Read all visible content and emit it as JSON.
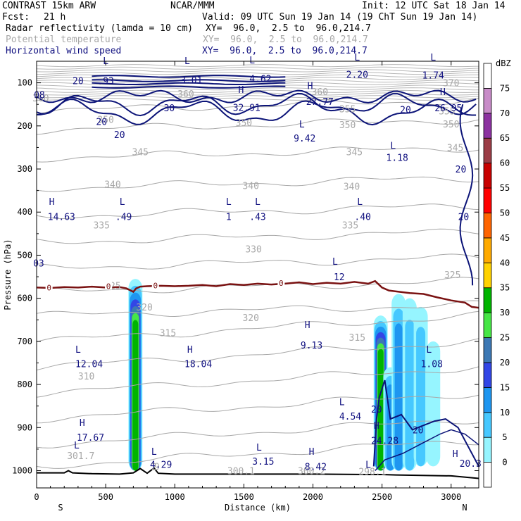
{
  "header": {
    "model": "CONTRAST 15km ARW",
    "org": "NCAR/MMM",
    "init": "Init: 12 UTC Sat 18 Jan 14",
    "fcst_label": "Fcst:",
    "fcst_value": "21 h",
    "valid": "Valid: 09 UTC Sun 19 Jan 14 (19 ChT Sun 19 Jan 14)"
  },
  "fields": [
    {
      "name": "Radar reflectivity (lamda = 10 cm)",
      "xy": "XY=  96.0,  2.5 to  96.0,214.7",
      "color": "#000000"
    },
    {
      "name": "Potential temperature",
      "xy": "XY=  96.0,  2.5 to  96.0,214.7",
      "color": "#a8a8a8"
    },
    {
      "name": "Horizontal wind speed",
      "xy": "XY=  96.0,  2.5 to  96.0,214.7",
      "color": "#101080"
    }
  ],
  "chart_data": {
    "type": "heatmap",
    "title": "",
    "xlabel": "Distance (km)",
    "ylabel": "Pressure (hPa)",
    "xlim": [
      0,
      3200
    ],
    "ylim": [
      1040,
      50
    ],
    "x_ticks": [
      0,
      500,
      1000,
      1500,
      2000,
      2500,
      3000
    ],
    "y_ticks": [
      100,
      200,
      300,
      400,
      500,
      600,
      700,
      800,
      900,
      1000
    ],
    "x_end_labels": {
      "left": "S",
      "right": "N"
    },
    "colorbar": {
      "unit": "dBZ",
      "levels": [
        0,
        5,
        10,
        15,
        20,
        25,
        30,
        35,
        40,
        45,
        50,
        55,
        60,
        65,
        70,
        75
      ],
      "colors": [
        "#ffffff",
        "#96f5ff",
        "#46c8ff",
        "#1e96f0",
        "#3246e6",
        "#3c78b4",
        "#46e646",
        "#00b400",
        "#ffd200",
        "#ffaa00",
        "#ff6400",
        "#ff0000",
        "#c80000",
        "#9b3c46",
        "#8c32a0",
        "#c88cc8",
        "#ffffff"
      ]
    },
    "theta_labels": [
      {
        "x": 30,
        "p": 135,
        "text": "360"
      },
      {
        "x": 1080,
        "p": 125,
        "text": "360"
      },
      {
        "x": 2050,
        "p": 120,
        "text": "360"
      },
      {
        "x": 3000,
        "p": 100,
        "text": "370"
      },
      {
        "x": 2970,
        "p": 165,
        "text": "355"
      },
      {
        "x": 2250,
        "p": 160,
        "text": "355"
      },
      {
        "x": 500,
        "p": 185,
        "text": "350"
      },
      {
        "x": 1500,
        "p": 192,
        "text": "350"
      },
      {
        "x": 2250,
        "p": 197,
        "text": "350"
      },
      {
        "x": 3000,
        "p": 195,
        "text": "350"
      },
      {
        "x": 750,
        "p": 260,
        "text": "345"
      },
      {
        "x": 2300,
        "p": 260,
        "text": "345"
      },
      {
        "x": 3030,
        "p": 250,
        "text": "345"
      },
      {
        "x": 550,
        "p": 335,
        "text": "340"
      },
      {
        "x": 1550,
        "p": 338,
        "text": "340"
      },
      {
        "x": 2280,
        "p": 340,
        "text": "340"
      },
      {
        "x": 470,
        "p": 430,
        "text": "335"
      },
      {
        "x": 2270,
        "p": 430,
        "text": "335"
      },
      {
        "x": 1570,
        "p": 485,
        "text": "330"
      },
      {
        "x": 550,
        "p": 570,
        "text": "325"
      },
      {
        "x": 3010,
        "p": 545,
        "text": "325"
      },
      {
        "x": 780,
        "p": 620,
        "text": "320"
      },
      {
        "x": 1550,
        "p": 645,
        "text": "320"
      },
      {
        "x": 950,
        "p": 680,
        "text": "315"
      },
      {
        "x": 2320,
        "p": 690,
        "text": "315"
      },
      {
        "x": 360,
        "p": 780,
        "text": "310"
      },
      {
        "x": 320,
        "p": 965,
        "text": "301.7"
      },
      {
        "x": 850,
        "p": 990,
        "text": "2"
      },
      {
        "x": 870,
        "p": 990,
        "text": "9"
      },
      {
        "x": 1480,
        "p": 1000,
        "text": "300.1"
      },
      {
        "x": 1990,
        "p": 1000,
        "text": "300.2"
      },
      {
        "x": 2430,
        "p": 1002,
        "text": "298.1"
      }
    ],
    "wind_speed_labels": [
      {
        "x": 300,
        "p": 95,
        "text": "20"
      },
      {
        "x": 500,
        "p": 95,
        "text": ".93"
      },
      {
        "x": 1120,
        "p": 93,
        "text": "3.01"
      },
      {
        "x": 1620,
        "p": 90,
        "text": "4.62"
      },
      {
        "x": 2320,
        "p": 80,
        "text": "2.20"
      },
      {
        "x": 2870,
        "p": 82,
        "text": "1.74"
      },
      {
        "x": 20,
        "p": 128,
        "text": "08"
      },
      {
        "x": 960,
        "p": 158,
        "text": "30"
      },
      {
        "x": 1520,
        "p": 157,
        "text": "32.91"
      },
      {
        "x": 2050,
        "p": 143,
        "text": "27.77"
      },
      {
        "x": 2670,
        "p": 162,
        "text": "20"
      },
      {
        "x": 2980,
        "p": 158,
        "text": "26.95"
      },
      {
        "x": 470,
        "p": 190,
        "text": "20"
      },
      {
        "x": 600,
        "p": 220,
        "text": "20"
      },
      {
        "x": 1940,
        "p": 228,
        "text": "9.42"
      },
      {
        "x": 2610,
        "p": 273,
        "text": "1.18"
      },
      {
        "x": 3070,
        "p": 300,
        "text": "20"
      },
      {
        "x": 180,
        "p": 410,
        "text": "14.63"
      },
      {
        "x": 630,
        "p": 410,
        "text": ".49"
      },
      {
        "x": 1390,
        "p": 410,
        "text": "1"
      },
      {
        "x": 1600,
        "p": 410,
        "text": ".43"
      },
      {
        "x": 2360,
        "p": 410,
        "text": ".40"
      },
      {
        "x": 3090,
        "p": 410,
        "text": "20"
      },
      {
        "x": 15,
        "p": 518,
        "text": "03"
      },
      {
        "x": 2190,
        "p": 550,
        "text": "12"
      },
      {
        "x": 1990,
        "p": 708,
        "text": "9.13"
      },
      {
        "x": 380,
        "p": 752,
        "text": "12.04"
      },
      {
        "x": 1170,
        "p": 752,
        "text": "18.04"
      },
      {
        "x": 2860,
        "p": 752,
        "text": "1.08"
      },
      {
        "x": 2270,
        "p": 873,
        "text": "4.54"
      },
      {
        "x": 2460,
        "p": 857,
        "text": "20"
      },
      {
        "x": 390,
        "p": 922,
        "text": "17.67"
      },
      {
        "x": 2520,
        "p": 930,
        "text": "24.28"
      },
      {
        "x": 2760,
        "p": 905,
        "text": "20"
      },
      {
        "x": 900,
        "p": 985,
        "text": "4.29"
      },
      {
        "x": 1640,
        "p": 978,
        "text": "3.15"
      },
      {
        "x": 2020,
        "p": 990,
        "text": "8.42"
      },
      {
        "x": 3140,
        "p": 983,
        "text": "20.3"
      }
    ],
    "extrema_marks": [
      {
        "x": 500,
        "p": 48,
        "text": "L"
      },
      {
        "x": 1090,
        "p": 48,
        "text": "L"
      },
      {
        "x": 1560,
        "p": 47,
        "text": "L"
      },
      {
        "x": 2320,
        "p": 40,
        "text": "L"
      },
      {
        "x": 2870,
        "p": 40,
        "text": "L"
      },
      {
        "x": 1480,
        "p": 115,
        "text": "H"
      },
      {
        "x": 1980,
        "p": 106,
        "text": "H"
      },
      {
        "x": 2940,
        "p": 120,
        "text": "H"
      },
      {
        "x": 1920,
        "p": 195,
        "text": "L"
      },
      {
        "x": 2580,
        "p": 245,
        "text": "L"
      },
      {
        "x": 110,
        "p": 375,
        "text": "H"
      },
      {
        "x": 620,
        "p": 375,
        "text": "L"
      },
      {
        "x": 1390,
        "p": 375,
        "text": "L"
      },
      {
        "x": 1600,
        "p": 375,
        "text": "L"
      },
      {
        "x": 2340,
        "p": 375,
        "text": "L"
      },
      {
        "x": 2160,
        "p": 514,
        "text": "L"
      },
      {
        "x": 1960,
        "p": 661,
        "text": "H"
      },
      {
        "x": 300,
        "p": 718,
        "text": "L"
      },
      {
        "x": 1110,
        "p": 718,
        "text": "H"
      },
      {
        "x": 2840,
        "p": 718,
        "text": "L"
      },
      {
        "x": 2210,
        "p": 840,
        "text": "L"
      },
      {
        "x": 330,
        "p": 888,
        "text": "H"
      },
      {
        "x": 2460,
        "p": 895,
        "text": "H"
      },
      {
        "x": 850,
        "p": 955,
        "text": "L"
      },
      {
        "x": 1610,
        "p": 945,
        "text": "L"
      },
      {
        "x": 1990,
        "p": 955,
        "text": "H"
      },
      {
        "x": 3030,
        "p": 960,
        "text": "H"
      },
      {
        "x": 290,
        "p": 940,
        "text": "L"
      },
      {
        "x": 2400,
        "p": 985,
        "text": "L"
      }
    ],
    "freezing_level_labels": [
      {
        "x": 90,
        "p": 575,
        "text": "0"
      },
      {
        "x": 520,
        "p": 572,
        "text": "0"
      },
      {
        "x": 860,
        "p": 570,
        "text": "0"
      },
      {
        "x": 1770,
        "p": 565,
        "text": "0"
      }
    ],
    "freezing_level": {
      "x": [
        0,
        100,
        200,
        300,
        400,
        500,
        600,
        650,
        700,
        720,
        750,
        800,
        900,
        1000,
        1100,
        1200,
        1300,
        1400,
        1500,
        1600,
        1700,
        1800,
        1900,
        2000,
        2100,
        2200,
        2300,
        2400,
        2450,
        2500,
        2550,
        2600,
        2700,
        2800,
        2900,
        3000,
        3100,
        3150,
        3200
      ],
      "p": [
        575,
        576,
        574,
        575,
        573,
        575,
        574,
        577,
        585,
        577,
        573,
        572,
        571,
        572,
        571,
        569,
        572,
        567,
        569,
        566,
        568,
        566,
        563,
        567,
        564,
        566,
        562,
        566,
        560,
        575,
        582,
        584,
        588,
        590,
        598,
        605,
        610,
        620,
        622
      ]
    },
    "reflectivity_cores": [
      {
        "x": 715,
        "p_top": 555,
        "p_bottom": 1000,
        "max_dbz": 35
      },
      {
        "x": 2490,
        "p_top": 640,
        "p_bottom": 1000,
        "max_dbz": 35
      },
      {
        "x": 2560,
        "p_top": 760,
        "p_bottom": 1000,
        "max_dbz": 15
      },
      {
        "x": 2620,
        "p_top": 590,
        "p_bottom": 1000,
        "max_dbz": 15
      },
      {
        "x": 2700,
        "p_top": 600,
        "p_bottom": 1000,
        "max_dbz": 10
      },
      {
        "x": 2780,
        "p_top": 620,
        "p_bottom": 990,
        "max_dbz": 10
      },
      {
        "x": 2870,
        "p_top": 700,
        "p_bottom": 990,
        "max_dbz": 5
      }
    ],
    "terrain": {
      "x": [
        0,
        200,
        230,
        260,
        400,
        600,
        700,
        750,
        800,
        850,
        880,
        1000,
        1500,
        2000,
        2400,
        2500,
        2600,
        3000,
        3200
      ],
      "p": [
        1005,
        1005,
        1000,
        1005,
        1007,
        1008,
        1005,
        995,
        1006,
        994,
        1006,
        1008,
        1008,
        1008,
        1009,
        1009,
        1010,
        1012,
        1018
      ]
    }
  }
}
